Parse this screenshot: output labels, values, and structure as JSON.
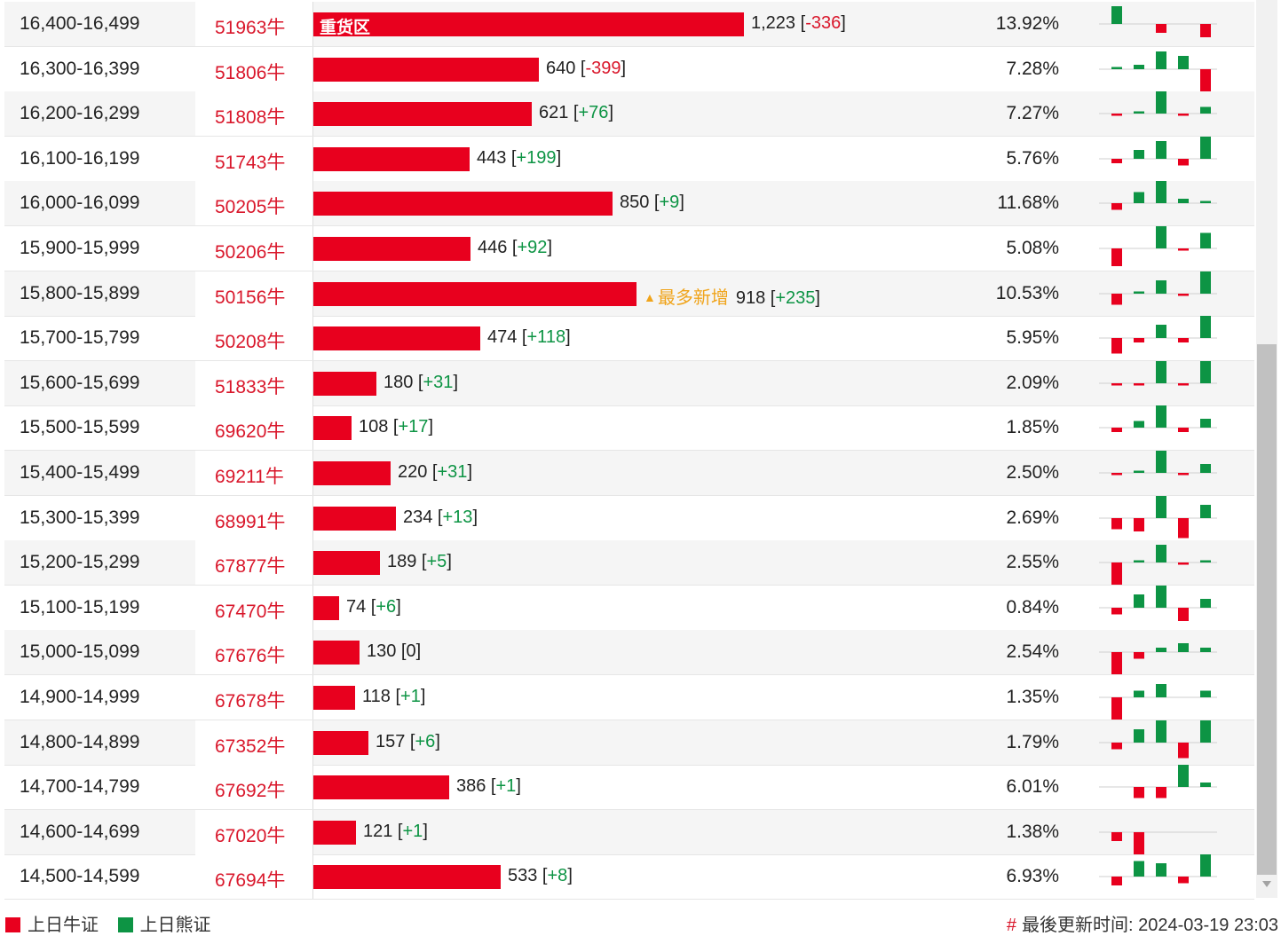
{
  "colors": {
    "bull": "#e8001e",
    "bear": "#0d9444",
    "text": "#222222",
    "code": "#d9172b",
    "most": "#f0a41b"
  },
  "rows": [
    {
      "range": "16,400-16,499",
      "code": "51963牛",
      "count": 1223,
      "count_label": "1,223",
      "change": "-336",
      "percent": "13.92%",
      "bar_label": "重货区",
      "mini": [
        4,
        0,
        -2,
        0,
        -3
      ]
    },
    {
      "range": "16,300-16,399",
      "code": "51806牛",
      "count": 640,
      "count_label": "640",
      "change": "-399",
      "percent": "7.28%",
      "mini": [
        0.5,
        1,
        4,
        3,
        -6
      ]
    },
    {
      "range": "16,200-16,299",
      "code": "51808牛",
      "count": 621,
      "count_label": "621",
      "change": "+76",
      "percent": "7.27%",
      "mini": [
        -0.5,
        0.5,
        5,
        -0.5,
        1.5
      ]
    },
    {
      "range": "16,100-16,199",
      "code": "51743牛",
      "count": 443,
      "count_label": "443",
      "change": "+199",
      "percent": "5.76%",
      "mini": [
        -1,
        2,
        4,
        -1.5,
        5
      ]
    },
    {
      "range": "16,000-16,099",
      "code": "50205牛",
      "count": 850,
      "count_label": "850",
      "change": "+9",
      "percent": "11.68%",
      "mini": [
        -1.5,
        2.5,
        5,
        1,
        0.5
      ]
    },
    {
      "range": "15,900-15,999",
      "code": "50206牛",
      "count": 446,
      "count_label": "446",
      "change": "+92",
      "percent": "5.08%",
      "mini": [
        -4,
        0,
        5,
        -0.5,
        3.5
      ]
    },
    {
      "range": "15,800-15,899",
      "code": "50156牛",
      "count": 918,
      "count_label": "918",
      "change": "+235",
      "percent": "10.53%",
      "most_label": "最多新增",
      "mini": [
        -2.5,
        0.5,
        3,
        -0.5,
        5
      ]
    },
    {
      "range": "15,700-15,799",
      "code": "50208牛",
      "count": 474,
      "count_label": "474",
      "change": "+118",
      "percent": "5.95%",
      "mini": [
        -3.5,
        -1,
        3,
        -1,
        5
      ]
    },
    {
      "range": "15,600-15,699",
      "code": "51833牛",
      "count": 180,
      "count_label": "180",
      "change": "+31",
      "percent": "2.09%",
      "mini": [
        -0.5,
        -0.5,
        5,
        -0.5,
        5
      ]
    },
    {
      "range": "15,500-15,599",
      "code": "69620牛",
      "count": 108,
      "count_label": "108",
      "change": "+17",
      "percent": "1.85%",
      "mini": [
        -1,
        1.5,
        5,
        -1,
        2
      ]
    },
    {
      "range": "15,400-15,499",
      "code": "69211牛",
      "count": 220,
      "count_label": "220",
      "change": "+31",
      "percent": "2.50%",
      "mini": [
        -0.5,
        0.5,
        5,
        -0.5,
        2
      ]
    },
    {
      "range": "15,300-15,399",
      "code": "68991牛",
      "count": 234,
      "count_label": "234",
      "change": "+13",
      "percent": "2.69%",
      "mini": [
        -2.5,
        -3,
        5,
        -4.5,
        3
      ]
    },
    {
      "range": "15,200-15,299",
      "code": "67877牛",
      "count": 189,
      "count_label": "189",
      "change": "+5",
      "percent": "2.55%",
      "mini": [
        -5,
        0.5,
        4,
        -0.5,
        0.5
      ]
    },
    {
      "range": "15,100-15,199",
      "code": "67470牛",
      "count": 74,
      "count_label": "74",
      "change": "+6",
      "percent": "0.84%",
      "mini": [
        -1.5,
        3,
        5,
        -3,
        2
      ]
    },
    {
      "range": "15,000-15,099",
      "code": "67676牛",
      "count": 130,
      "count_label": "130",
      "change": "0",
      "percent": "2.54%",
      "mini": [
        -5,
        -1.5,
        1,
        2,
        1
      ]
    },
    {
      "range": "14,900-14,999",
      "code": "67678牛",
      "count": 118,
      "count_label": "118",
      "change": "+1",
      "percent": "1.35%",
      "mini": [
        -5,
        1.5,
        3,
        0,
        1.5
      ]
    },
    {
      "range": "14,800-14,899",
      "code": "67352牛",
      "count": 157,
      "count_label": "157",
      "change": "+6",
      "percent": "1.79%",
      "mini": [
        -1.5,
        3,
        5,
        -3.5,
        5
      ]
    },
    {
      "range": "14,700-14,799",
      "code": "67692牛",
      "count": 386,
      "count_label": "386",
      "change": "+1",
      "percent": "6.01%",
      "mini": [
        0,
        -2.5,
        -2.5,
        5,
        1
      ]
    },
    {
      "range": "14,600-14,699",
      "code": "67020牛",
      "count": 121,
      "count_label": "121",
      "change": "+1",
      "percent": "1.38%",
      "mini": [
        -2,
        -5,
        0,
        0,
        0
      ]
    },
    {
      "range": "14,500-14,599",
      "code": "67694牛",
      "count": 533,
      "count_label": "533",
      "change": "+8",
      "percent": "6.93%",
      "mini": [
        -2,
        3.5,
        3,
        -1.5,
        5
      ]
    }
  ],
  "legend": {
    "bull": "上日牛证",
    "bear": "上日熊证"
  },
  "footer": {
    "hash": "#",
    "updated": "最後更新时间: 2024-03-19 23:03"
  }
}
